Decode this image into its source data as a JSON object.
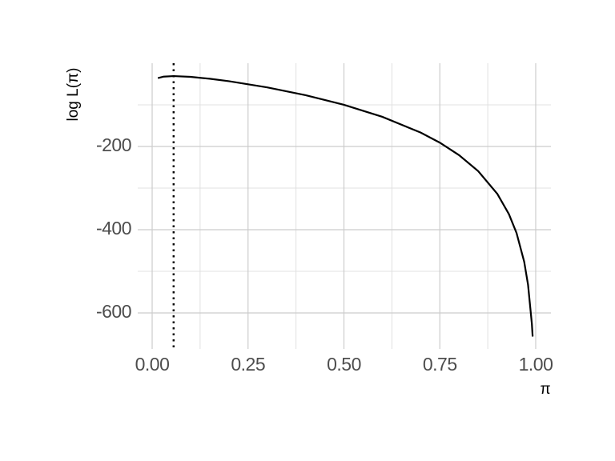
{
  "chart_data": {
    "type": "line",
    "x_label": "π",
    "y_label": "log L(π)",
    "x": [
      0.015,
      0.03,
      0.056,
      0.1,
      0.15,
      0.2,
      0.3,
      0.4,
      0.5,
      0.6,
      0.7,
      0.75,
      0.8,
      0.85,
      0.9,
      0.93,
      0.95,
      0.97,
      0.98,
      0.99,
      0.992
    ],
    "series": [
      {
        "color": "#000000",
        "values": [
          -35.7,
          -32.2,
          -30.9,
          -32.75,
          -37.3,
          -43.2,
          -58.1,
          -76.8,
          -99.8,
          -128.7,
          -166.6,
          -190.8,
          -220.7,
          -259.3,
          -314.0,
          -362.3,
          -407.8,
          -477.1,
          -532.2,
          -626.4,
          -656.7
        ]
      }
    ],
    "vline": 0.056,
    "xlim": [
      -0.0376,
      1.0397
    ],
    "ylim": [
      -686.5,
      0
    ],
    "xticks": [
      {
        "value": 0,
        "label": "0.00"
      },
      {
        "value": 0.25,
        "label": "0.25"
      },
      {
        "value": 0.5,
        "label": "0.50"
      },
      {
        "value": 0.75,
        "label": "0.75"
      },
      {
        "value": 1,
        "label": "1.00"
      }
    ],
    "yticks": [
      -200,
      -400,
      -600
    ],
    "xminor": [
      0.125,
      0.375,
      0.625,
      0.875
    ],
    "yminor": [
      -100,
      -300,
      -500
    ],
    "grid": true
  }
}
